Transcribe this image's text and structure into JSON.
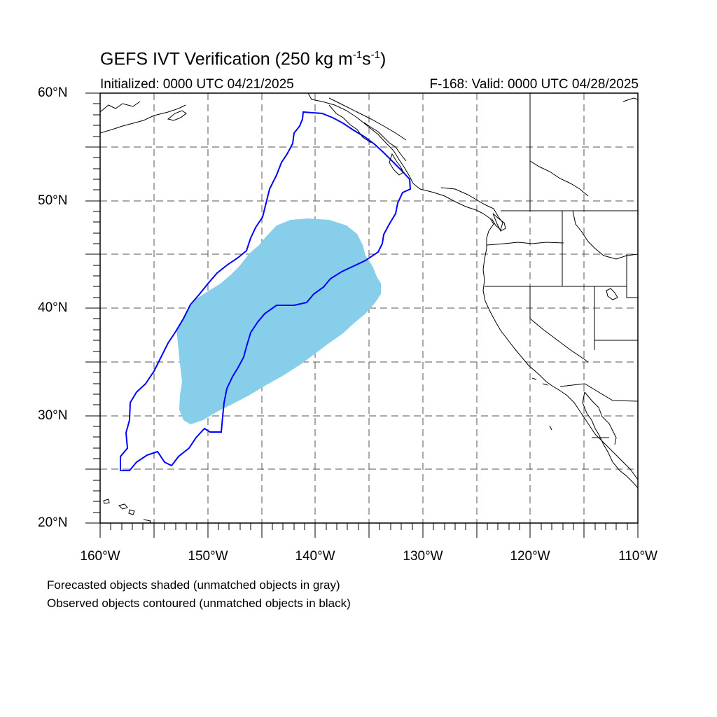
{
  "title": {
    "main": "GEFS IVT Verification (250 kg m",
    "sup1": "-1",
    "mid": "s",
    "sup2": "-1",
    "end": ")"
  },
  "subtitle": {
    "left": "Initialized: 0000 UTC 04/21/2025",
    "right": "F-168: Valid: 0000 UTC 04/28/2025"
  },
  "axes": {
    "lat_labels": [
      "60°N",
      "50°N",
      "40°N",
      "30°N",
      "20°N"
    ],
    "lon_labels": [
      "160°W",
      "150°W",
      "140°W",
      "130°W",
      "120°W",
      "110°W"
    ],
    "lon_range": [
      -160,
      -110
    ],
    "lat_range": [
      20,
      60
    ],
    "grid_spacing_deg": 5,
    "grid": true
  },
  "notes": {
    "line1": "Forecasted objects shaded (unmatched objects in gray)",
    "line2": "Observed objects contoured (unmatched objects in black)"
  },
  "colors": {
    "forecast_fill": "#87ceeb",
    "observed_contour": "#0000ff",
    "grid": "#555555",
    "coast": "#000000"
  }
}
